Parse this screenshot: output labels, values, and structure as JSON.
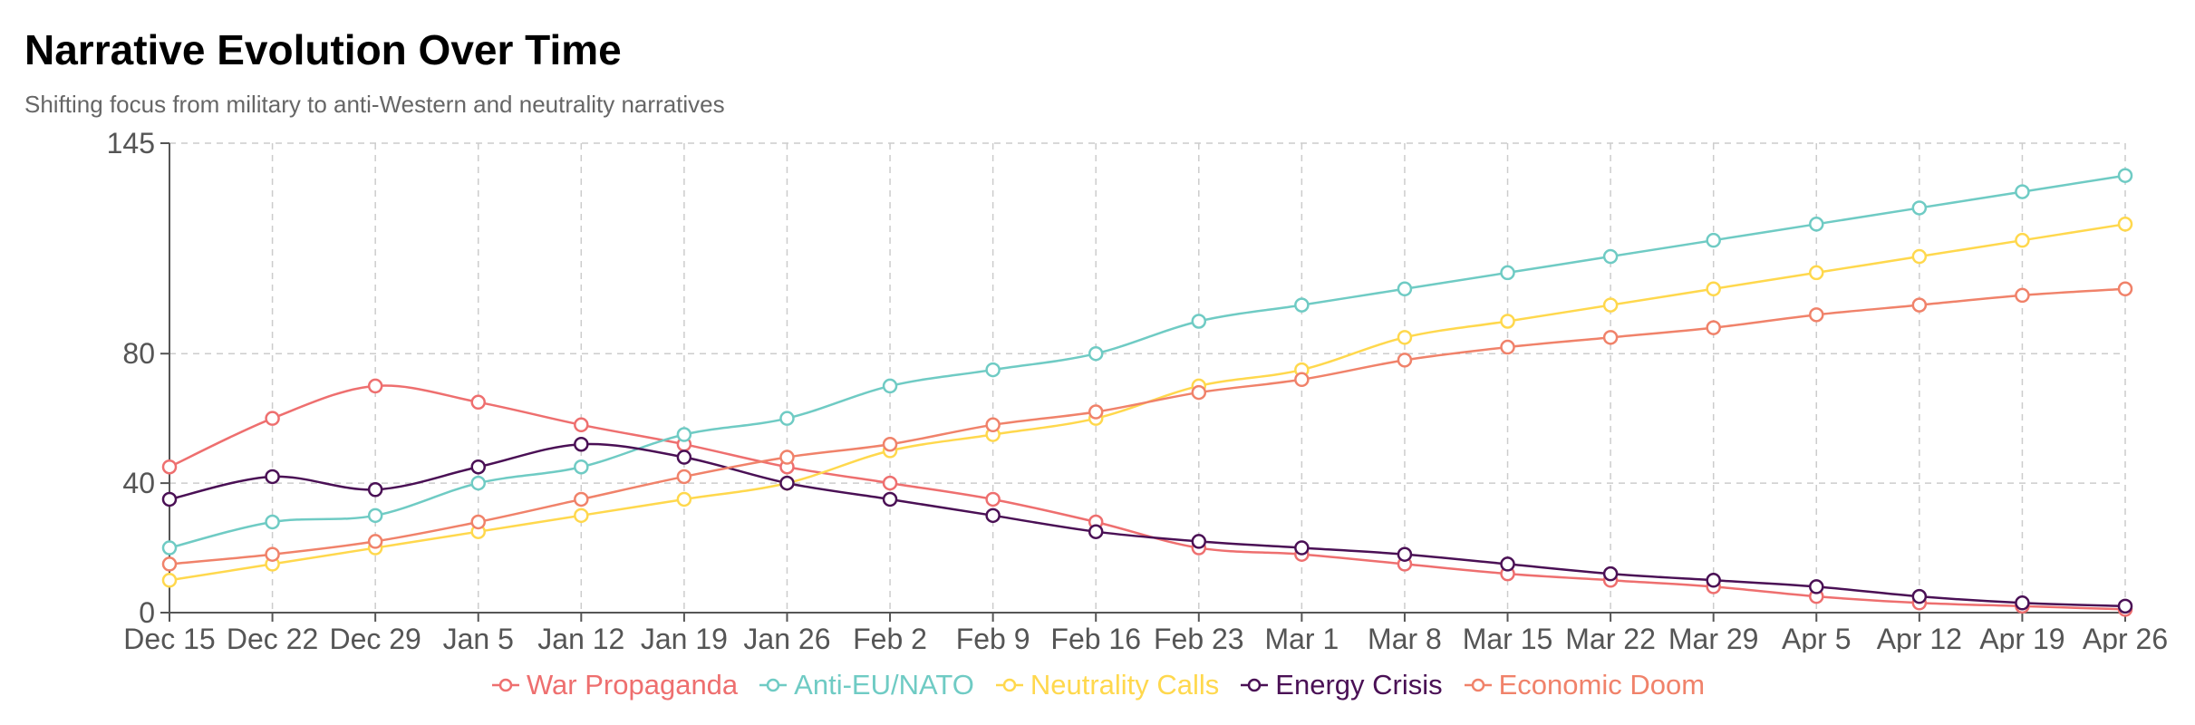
{
  "header": {
    "title": "Narrative Evolution Over Time",
    "subtitle": "Shifting focus from military to anti-Western and neutrality narratives"
  },
  "chart_data": {
    "type": "line",
    "title": "Narrative Evolution Over Time",
    "subtitle": "Shifting focus from military to anti-Western and neutrality narratives",
    "categories": [
      "Dec 15",
      "Dec 22",
      "Dec 29",
      "Jan 5",
      "Jan 12",
      "Jan 19",
      "Jan 26",
      "Feb 2",
      "Feb 9",
      "Feb 16",
      "Feb 23",
      "Mar 1",
      "Mar 8",
      "Mar 15",
      "Mar 22",
      "Mar 29",
      "Apr 5",
      "Apr 12",
      "Apr 19",
      "Apr 26"
    ],
    "y_ticks": [
      0,
      40,
      80,
      145
    ],
    "ylim": [
      0,
      145
    ],
    "grid": true,
    "legend_position": "bottom",
    "series": [
      {
        "name": "War Propaganda",
        "color": "#ee6f6f",
        "values": [
          45,
          60,
          70,
          65,
          58,
          52,
          45,
          40,
          35,
          28,
          20,
          18,
          15,
          12,
          10,
          8,
          5,
          3,
          2,
          1
        ]
      },
      {
        "name": "Anti-EU/NATO",
        "color": "#6fcbc4",
        "values": [
          20,
          28,
          30,
          40,
          45,
          55,
          60,
          70,
          75,
          80,
          90,
          95,
          100,
          105,
          110,
          115,
          120,
          125,
          130,
          135
        ]
      },
      {
        "name": "Neutrality Calls",
        "color": "#ffd84d",
        "values": [
          10,
          15,
          20,
          25,
          30,
          35,
          40,
          50,
          55,
          60,
          70,
          75,
          85,
          90,
          95,
          100,
          105,
          110,
          115,
          120
        ]
      },
      {
        "name": "Energy Crisis",
        "color": "#4a1055",
        "values": [
          35,
          42,
          38,
          45,
          52,
          48,
          40,
          35,
          30,
          25,
          22,
          20,
          18,
          15,
          12,
          10,
          8,
          5,
          3,
          2
        ]
      },
      {
        "name": "Economic Doom",
        "color": "#f0826a",
        "values": [
          15,
          18,
          22,
          28,
          35,
          42,
          48,
          52,
          58,
          62,
          68,
          72,
          78,
          82,
          85,
          88,
          92,
          95,
          98,
          100
        ]
      }
    ]
  }
}
